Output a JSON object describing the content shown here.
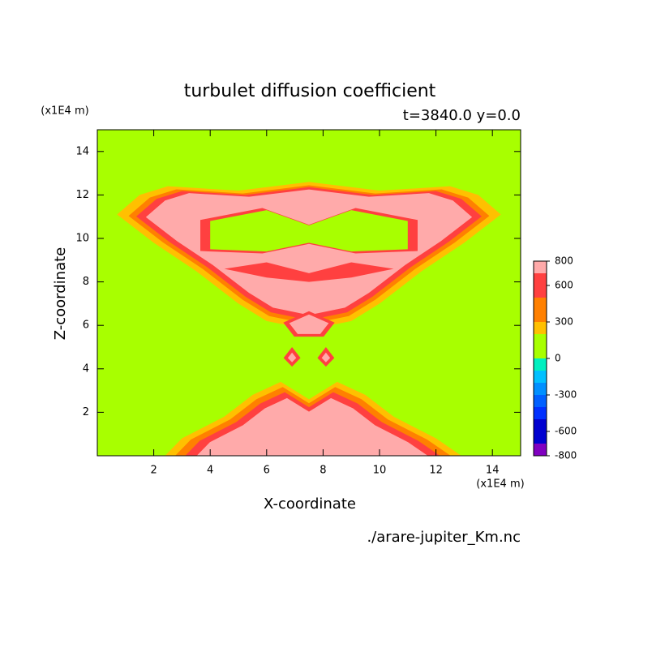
{
  "chart_data": {
    "type": "contour",
    "title": "turbulet diffusion coefficient",
    "subtitle": "t=3840.0 y=0.0",
    "xlabel": "X-coordinate",
    "ylabel": "Z-coordinate",
    "x_unit": "(x1E4 m)",
    "y_unit": "(x1E4 m)",
    "source": "./arare-jupiter_Km.nc",
    "xlim": [
      0,
      15
    ],
    "ylim": [
      0,
      15
    ],
    "xticks": [
      2,
      4,
      6,
      8,
      10,
      12,
      14
    ],
    "yticks": [
      2,
      4,
      6,
      8,
      10,
      12,
      14
    ],
    "colorbar": {
      "bounds": [
        -800,
        -700,
        -500,
        -400,
        -300,
        -200,
        -100,
        0,
        200,
        300,
        500,
        700,
        800
      ],
      "colors": [
        "#8000c0",
        "#0000d0",
        "#0030ff",
        "#0060ff",
        "#0090ff",
        "#00c0ff",
        "#00f0c0",
        "#a8ff00",
        "#ffc000",
        "#ff8000",
        "#ff4040",
        "#ffaaaa"
      ],
      "ticks": [
        -800,
        -600,
        -300,
        0,
        300,
        600,
        800
      ]
    }
  }
}
